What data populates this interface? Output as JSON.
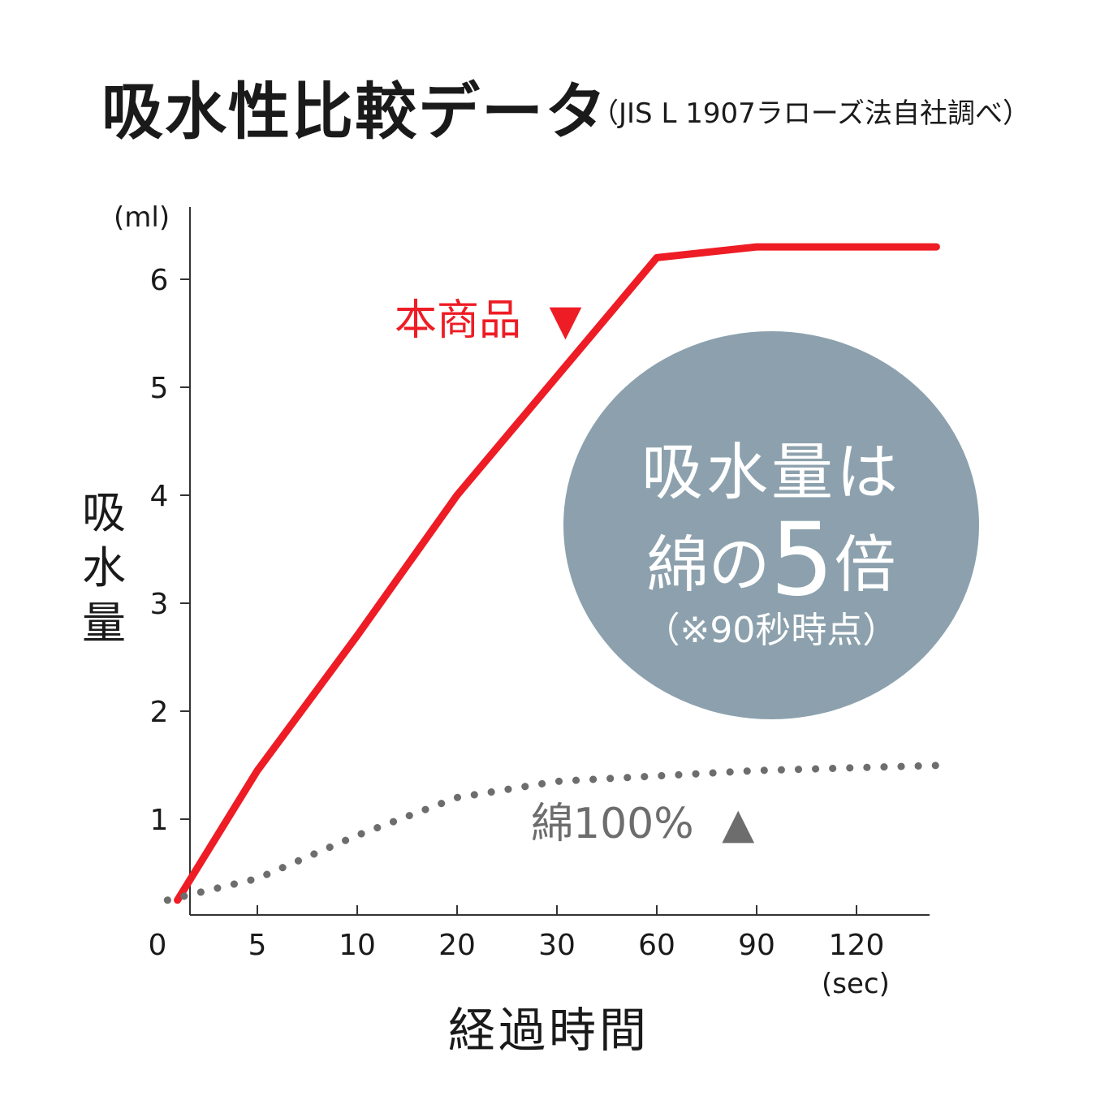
{
  "header": {
    "title": "吸水性比較データ",
    "subtitle": "（JIS L 1907ラローズ法自社調べ）"
  },
  "labels": {
    "y_unit": "(ml)",
    "x_unit": "(sec)",
    "ylabel": "吸水量",
    "xlabel": "経過時間"
  },
  "series_labels": {
    "product": "本商品",
    "product_marker": "▼",
    "cotton": "綿100%",
    "cotton_marker": "▲"
  },
  "badge": {
    "line1": "吸水量は",
    "line2_pre": "綿の",
    "line2_big": "5",
    "line2_post": "倍",
    "line3": "（※90秒時点）"
  },
  "colors": {
    "product": "#ee1c25",
    "cotton": "#6d6d6d",
    "badge": "#8ca1ad"
  },
  "chart_data": {
    "type": "line",
    "x": [
      "0",
      "5",
      "10",
      "20",
      "30",
      "60",
      "90",
      "120"
    ],
    "y_ticks": [
      "1",
      "2",
      "3",
      "4",
      "5",
      "6"
    ],
    "ylim": [
      0,
      6.5
    ],
    "grid": false,
    "series": [
      {
        "name": "本商品",
        "style": "solid",
        "points": [
          [
            0.2,
            0.25
          ],
          [
            1,
            1.45
          ],
          [
            2,
            2.7
          ],
          [
            3,
            4.0
          ],
          [
            4,
            5.1
          ],
          [
            5,
            6.2
          ],
          [
            6,
            6.3
          ],
          [
            7.8,
            6.3
          ]
        ]
      },
      {
        "name": "綿100%",
        "style": "dotted",
        "points": [
          [
            0.1,
            0.25
          ],
          [
            1,
            0.45
          ],
          [
            2,
            0.85
          ],
          [
            3,
            1.2
          ],
          [
            4,
            1.35
          ],
          [
            5,
            1.4
          ],
          [
            6,
            1.45
          ],
          [
            7.9,
            1.5
          ]
        ]
      }
    ]
  }
}
